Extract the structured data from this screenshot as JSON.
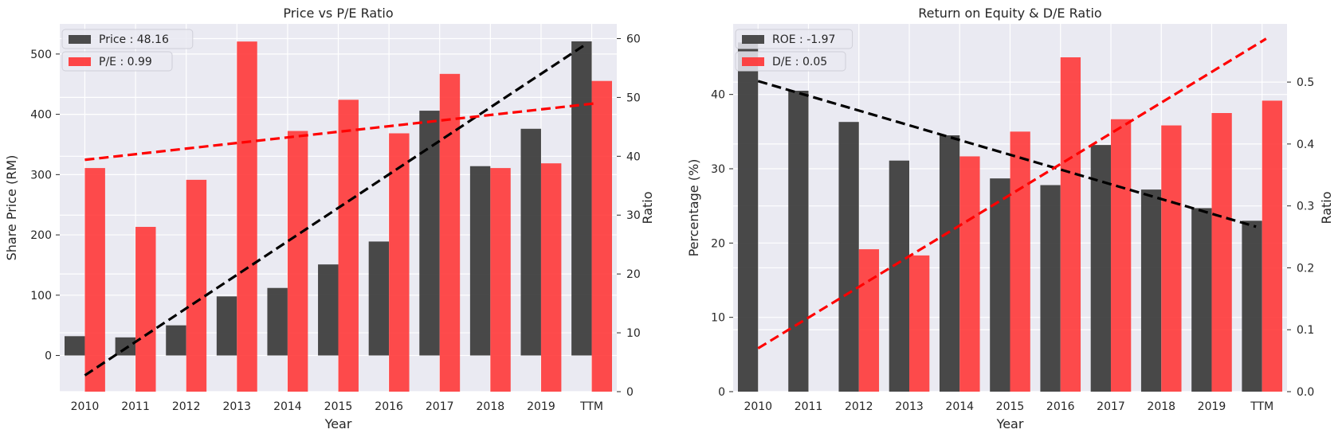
{
  "chart_data": [
    {
      "type": "bar",
      "title": "Price vs P/E Ratio",
      "xlabel": "Year",
      "ylabel": "Share Price (RM)",
      "ylabel_right": "Ratio",
      "categories": [
        "2010",
        "2011",
        "2012",
        "2013",
        "2014",
        "2015",
        "2016",
        "2017",
        "2018",
        "2019",
        "TTM"
      ],
      "ylim": [
        -60,
        550
      ],
      "ylim_right": [
        0,
        62.5
      ],
      "yticks": [
        0,
        100,
        200,
        300,
        400,
        500
      ],
      "yticks_right": [
        0,
        10,
        20,
        30,
        40,
        50,
        60
      ],
      "grid": true,
      "legend_position": "top-left",
      "series": [
        {
          "name": "Price : 48.16",
          "axis": "left",
          "color": "#3a3a3a",
          "values": [
            32,
            30,
            50,
            98,
            112,
            151,
            189,
            406,
            314,
            376,
            521
          ],
          "trend": [
            -33,
            516
          ]
        },
        {
          "name": "P/E : 0.99",
          "axis": "right",
          "color": "#ff3333",
          "values": [
            38,
            28,
            36,
            59.5,
            44.3,
            49.6,
            43.9,
            54,
            38,
            38.8,
            52.8
          ],
          "trend": [
            39.4,
            49
          ]
        }
      ]
    },
    {
      "type": "bar",
      "title": "Return on Equity & D/E Ratio",
      "xlabel": "Year",
      "ylabel": "Percentage (%)",
      "ylabel_right": "Ratio",
      "categories": [
        "2010",
        "2011",
        "2012",
        "2013",
        "2014",
        "2015",
        "2016",
        "2017",
        "2018",
        "2019",
        "TTM"
      ],
      "ylim": [
        0,
        49.5
      ],
      "ylim_right": [
        0,
        0.594
      ],
      "yticks": [
        0,
        10,
        20,
        30,
        40
      ],
      "yticks_right": [
        0.0,
        0.1,
        0.2,
        0.3,
        0.4,
        0.5
      ],
      "grid": true,
      "legend_position": "top-left",
      "series": [
        {
          "name": "ROE : -1.97",
          "axis": "left",
          "color": "#3a3a3a",
          "values": [
            47,
            40.5,
            36.3,
            31.1,
            34.5,
            28.7,
            27.8,
            33.2,
            27.2,
            24.7,
            23
          ],
          "trend": [
            41.8,
            22.2
          ]
        },
        {
          "name": "D/E : 0.05",
          "axis": "right",
          "color": "#ff3333",
          "values": [
            0,
            0,
            0.23,
            0.22,
            0.38,
            0.42,
            0.54,
            0.44,
            0.43,
            0.45,
            0.47
          ],
          "trend": [
            0.07,
            0.57
          ]
        }
      ]
    }
  ]
}
